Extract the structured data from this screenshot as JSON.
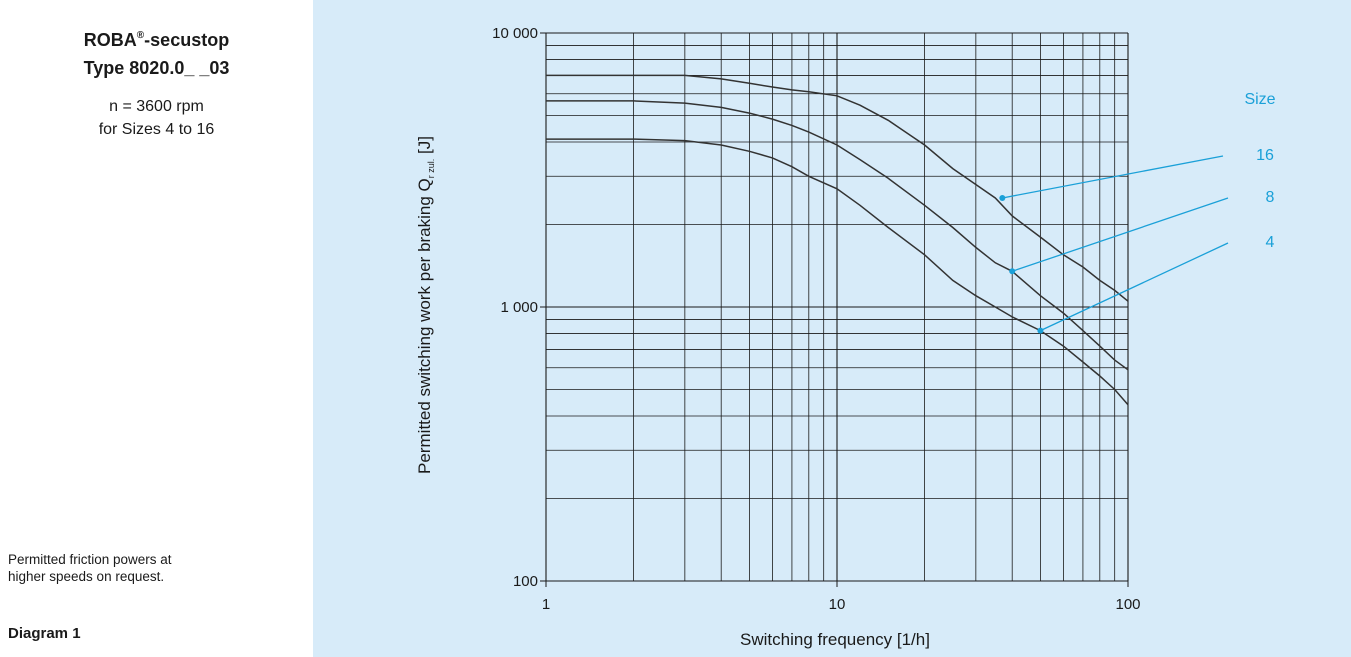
{
  "side_panel": {
    "title_main": "ROBA",
    "title_sup": "®",
    "title_suffix": "-secustop",
    "type_line": "Type 8020.0_ _03",
    "speed_line": "n = 3600 rpm",
    "sizes_line": "for Sizes 4 to 16",
    "note_line1": "Permitted friction powers at",
    "note_line2": "higher speeds on request.",
    "diagram_label": "Diagram 1"
  },
  "colors": {
    "accent": "#1aa0d8",
    "background": "#d7ebf9",
    "panel": "#ffffff",
    "curve": "#333333",
    "grid": "#1a1a1a"
  },
  "chart_data": {
    "type": "line",
    "title": "",
    "xlabel": "Switching frequency [1/h]",
    "ylabel_main": "Permitted switching work per braking Q",
    "ylabel_sub": "r zul.",
    "ylabel_unit": " [J]",
    "xscale": "log",
    "yscale": "log",
    "xlim": [
      1,
      100
    ],
    "ylim": [
      100,
      10000
    ],
    "grid": true,
    "x_ticks": [
      {
        "value": 1,
        "label": "1"
      },
      {
        "value": 10,
        "label": "10"
      },
      {
        "value": 100,
        "label": "100"
      }
    ],
    "y_ticks": [
      {
        "value": 100,
        "label": "100"
      },
      {
        "value": 1000,
        "label": "1 000"
      },
      {
        "value": 10000,
        "label": "10 000"
      }
    ],
    "legend_title": "Size",
    "series": [
      {
        "name": "16",
        "points": [
          [
            1,
            7000
          ],
          [
            2,
            7000
          ],
          [
            3,
            7000
          ],
          [
            4,
            6800
          ],
          [
            5,
            6550
          ],
          [
            6,
            6350
          ],
          [
            7,
            6200
          ],
          [
            8,
            6100
          ],
          [
            10,
            5900
          ],
          [
            12,
            5450
          ],
          [
            15,
            4800
          ],
          [
            20,
            3900
          ],
          [
            25,
            3200
          ],
          [
            30,
            2800
          ],
          [
            35,
            2500
          ],
          [
            40,
            2150
          ],
          [
            50,
            1800
          ],
          [
            60,
            1550
          ],
          [
            70,
            1400
          ],
          [
            80,
            1250
          ],
          [
            90,
            1150
          ],
          [
            100,
            1050
          ]
        ],
        "callout_point": [
          37,
          2500
        ]
      },
      {
        "name": "8",
        "points": [
          [
            1,
            5650
          ],
          [
            2,
            5650
          ],
          [
            3,
            5550
          ],
          [
            4,
            5350
          ],
          [
            5,
            5100
          ],
          [
            6,
            4850
          ],
          [
            7,
            4600
          ],
          [
            8,
            4350
          ],
          [
            10,
            3900
          ],
          [
            12,
            3450
          ],
          [
            15,
            2950
          ],
          [
            20,
            2350
          ],
          [
            25,
            1950
          ],
          [
            30,
            1650
          ],
          [
            35,
            1450
          ],
          [
            40,
            1350
          ],
          [
            50,
            1100
          ],
          [
            60,
            950
          ],
          [
            70,
            820
          ],
          [
            80,
            720
          ],
          [
            90,
            640
          ],
          [
            100,
            590
          ]
        ],
        "callout_point": [
          40,
          1350
        ]
      },
      {
        "name": "4",
        "points": [
          [
            1,
            4100
          ],
          [
            2,
            4100
          ],
          [
            3,
            4050
          ],
          [
            4,
            3900
          ],
          [
            5,
            3700
          ],
          [
            6,
            3500
          ],
          [
            7,
            3250
          ],
          [
            8,
            3000
          ],
          [
            10,
            2700
          ],
          [
            12,
            2350
          ],
          [
            15,
            1950
          ],
          [
            20,
            1550
          ],
          [
            25,
            1250
          ],
          [
            30,
            1100
          ],
          [
            35,
            1000
          ],
          [
            40,
            920
          ],
          [
            50,
            820
          ],
          [
            60,
            720
          ],
          [
            70,
            630
          ],
          [
            80,
            560
          ],
          [
            90,
            500
          ],
          [
            100,
            440
          ]
        ],
        "callout_point": [
          50,
          820
        ]
      }
    ]
  }
}
